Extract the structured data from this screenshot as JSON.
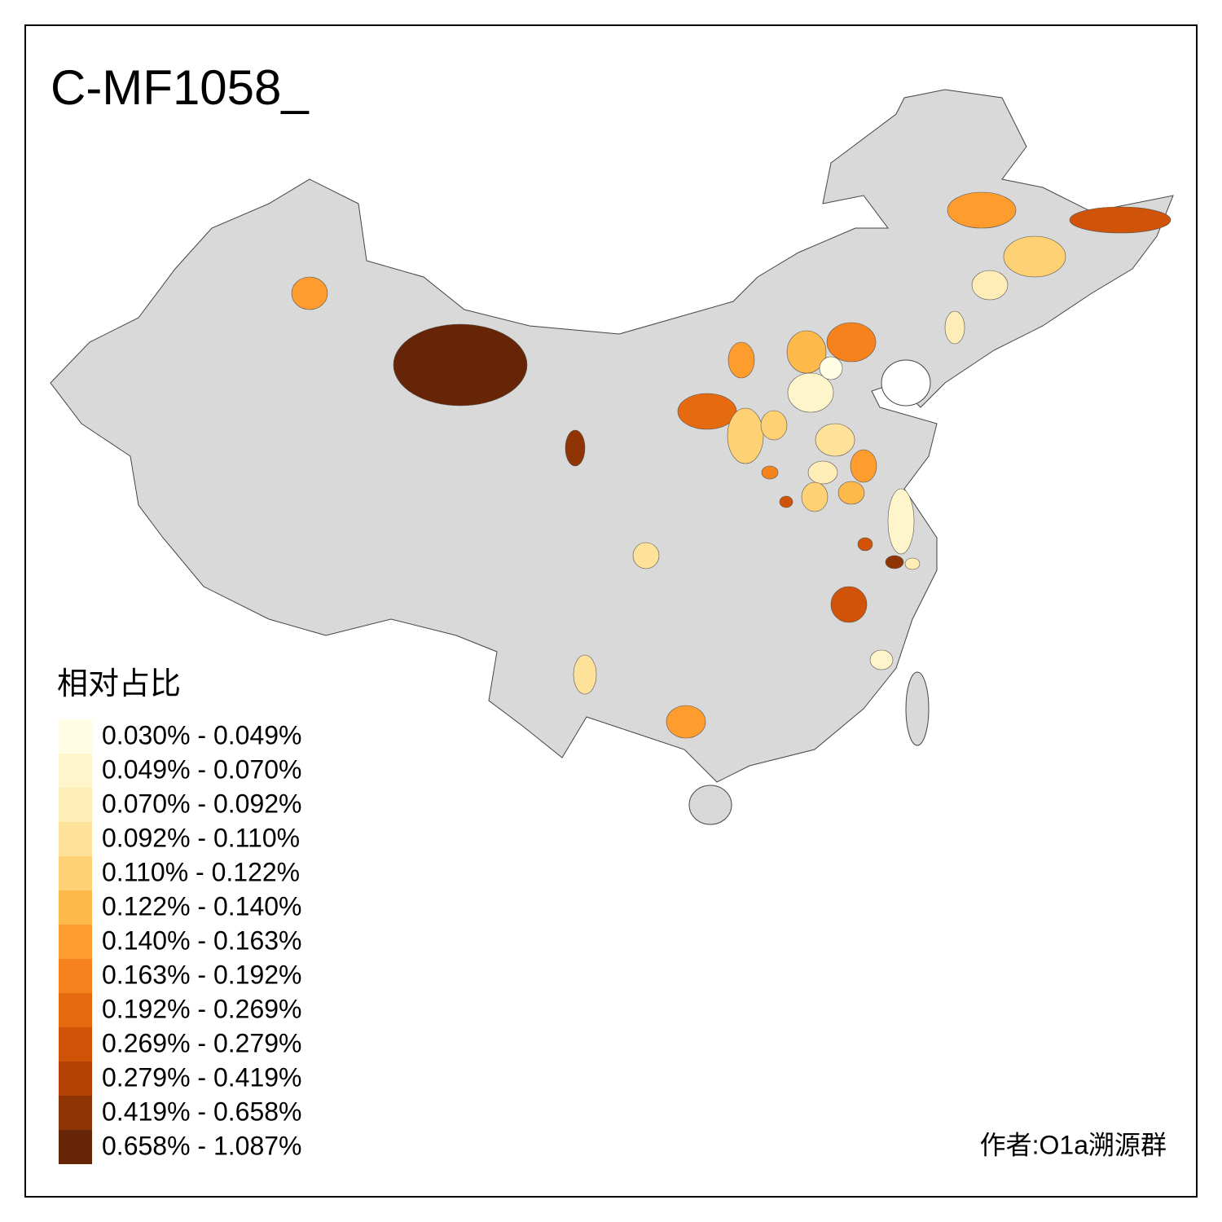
{
  "title": "C-MF1058_",
  "legend": {
    "title": "相对占比",
    "items": [
      {
        "label": "0.030% - 0.049%",
        "color": "#fffde4"
      },
      {
        "label": "0.049% - 0.070%",
        "color": "#fff5cb"
      },
      {
        "label": "0.070% - 0.092%",
        "color": "#feedb6"
      },
      {
        "label": "0.092% - 0.110%",
        "color": "#fee29a"
      },
      {
        "label": "0.110% - 0.122%",
        "color": "#fed174"
      },
      {
        "label": "0.122% - 0.140%",
        "color": "#feb94b"
      },
      {
        "label": "0.140% - 0.163%",
        "color": "#fe9d2e"
      },
      {
        "label": "0.163% - 0.192%",
        "color": "#f5821c"
      },
      {
        "label": "0.192% - 0.269%",
        "color": "#e56a10"
      },
      {
        "label": "0.269% - 0.279%",
        "color": "#d15307"
      },
      {
        "label": "0.279% - 0.419%",
        "color": "#b44204"
      },
      {
        "label": "0.419% - 0.658%",
        "color": "#8f3404"
      },
      {
        "label": "0.658% - 1.087%",
        "color": "#662506"
      }
    ]
  },
  "author": "作者:O1a溯源群"
}
